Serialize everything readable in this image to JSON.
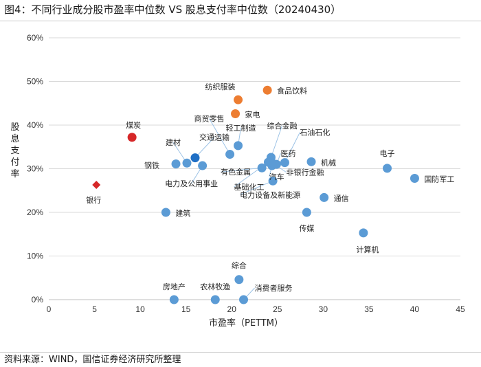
{
  "header": {
    "title": "图4：不同行业成分股市盈率中位数 VS 股息支付率中位数（20240430）"
  },
  "footer": {
    "source": "资料来源：WIND，国信证券经济研究所整理"
  },
  "colors": {
    "blue": "#5b9bd5",
    "dark_blue": "#1f6fc5",
    "orange": "#ed7d31",
    "red": "#d62728",
    "leader": "#9dc3e6"
  },
  "chart_data": {
    "type": "scatter",
    "title": "不同行业成分股市盈率中位数 VS 股息支付率中位数（20240430）",
    "xlabel": "市盈率（PETTM）",
    "ylabel": "股息支付率",
    "xlim": [
      0,
      45
    ],
    "ylim": [
      0,
      60
    ],
    "x_ticks": [
      "0",
      "5",
      "10",
      "15",
      "20",
      "25",
      "30",
      "35",
      "40",
      "45"
    ],
    "y_ticks": [
      "0%",
      "10%",
      "20%",
      "30%",
      "40%",
      "50%",
      "60%"
    ],
    "points": [
      {
        "name": "银行",
        "x": 5.2,
        "y": 26.3,
        "color": "red",
        "marker": "diamond"
      },
      {
        "name": "煤炭",
        "x": 9.1,
        "y": 37.2,
        "color": "red",
        "marker": "circle"
      },
      {
        "name": "建材",
        "x": 15.1,
        "y": 31.3,
        "color": "blue",
        "marker": "circle"
      },
      {
        "name": "钢铁",
        "x": 13.9,
        "y": 31.1,
        "color": "blue",
        "marker": "circle"
      },
      {
        "name": "交通运输",
        "x": 16.0,
        "y": 32.5,
        "color": "dark_blue",
        "marker": "circle"
      },
      {
        "name": "电力及公用事业",
        "x": 16.8,
        "y": 30.7,
        "color": "blue",
        "marker": "circle"
      },
      {
        "name": "建筑",
        "x": 12.8,
        "y": 20.0,
        "color": "blue",
        "marker": "circle"
      },
      {
        "name": "纺织服装",
        "x": 20.7,
        "y": 45.8,
        "color": "orange",
        "marker": "circle"
      },
      {
        "name": "家电",
        "x": 20.4,
        "y": 42.6,
        "color": "orange",
        "marker": "circle"
      },
      {
        "name": "食品饮料",
        "x": 23.9,
        "y": 48.0,
        "color": "orange",
        "marker": "circle"
      },
      {
        "name": "商贸零售",
        "x": 19.8,
        "y": 33.3,
        "color": "blue",
        "marker": "circle"
      },
      {
        "name": "轻工制造",
        "x": 20.7,
        "y": 35.3,
        "color": "blue",
        "marker": "circle"
      },
      {
        "name": "综合金融",
        "x": 24.3,
        "y": 32.6,
        "color": "blue",
        "marker": "circle"
      },
      {
        "name": "石油石化",
        "x": 25.8,
        "y": 31.4,
        "color": "blue",
        "marker": "circle"
      },
      {
        "name": "医药",
        "x": 24.9,
        "y": 31.0,
        "color": "blue",
        "marker": "circle"
      },
      {
        "name": "有色金属",
        "x": 23.3,
        "y": 30.2,
        "color": "blue",
        "marker": "circle"
      },
      {
        "name": "基础化工",
        "x": 24.0,
        "y": 31.5,
        "color": "blue",
        "marker": "circle"
      },
      {
        "name": "汽车",
        "x": 24.4,
        "y": 30.7,
        "color": "blue",
        "marker": "circle"
      },
      {
        "name": "非银行金融",
        "x": 24.6,
        "y": 31.1,
        "color": "blue",
        "marker": "circle"
      },
      {
        "name": "电力设备及新能源",
        "x": 24.5,
        "y": 27.2,
        "color": "blue",
        "marker": "circle"
      },
      {
        "name": "机械",
        "x": 28.7,
        "y": 31.6,
        "color": "blue",
        "marker": "circle"
      },
      {
        "name": "通信",
        "x": 30.1,
        "y": 23.4,
        "color": "blue",
        "marker": "circle"
      },
      {
        "name": "传媒",
        "x": 28.2,
        "y": 20.0,
        "color": "blue",
        "marker": "circle"
      },
      {
        "name": "电子",
        "x": 37.0,
        "y": 30.1,
        "color": "blue",
        "marker": "circle"
      },
      {
        "name": "国防军工",
        "x": 40.0,
        "y": 27.8,
        "color": "blue",
        "marker": "circle"
      },
      {
        "name": "计算机",
        "x": 34.4,
        "y": 15.3,
        "color": "blue",
        "marker": "circle"
      },
      {
        "name": "综合",
        "x": 20.8,
        "y": 4.6,
        "color": "blue",
        "marker": "circle"
      },
      {
        "name": "房地产",
        "x": 13.7,
        "y": 0.0,
        "color": "blue",
        "marker": "circle"
      },
      {
        "name": "农林牧渔",
        "x": 18.2,
        "y": 0.0,
        "color": "blue",
        "marker": "circle"
      },
      {
        "name": "消费者服务",
        "x": 21.3,
        "y": 0.0,
        "color": "blue",
        "marker": "circle"
      }
    ]
  }
}
